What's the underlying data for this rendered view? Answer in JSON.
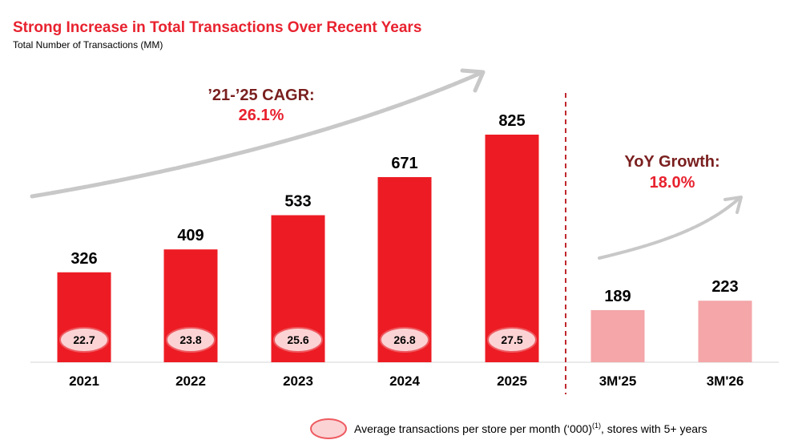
{
  "header": {
    "title": "Strong Increase in Total Transactions Over Recent Years",
    "subtitle": "Total Number of Transactions (MM)"
  },
  "colors": {
    "annual_bar": "#ed1c24",
    "quarter_bar": "#f4a6a9",
    "ellipse_fill": "#fbd3d4",
    "ellipse_stroke": "#ee5a60",
    "divider": "#c0282e",
    "arrow": "#c8c8c8",
    "heading": "#7a1f1f",
    "accent": "#e8222f"
  },
  "chart_data": {
    "type": "bar",
    "categories": [
      "2021",
      "2022",
      "2023",
      "2024",
      "2025",
      "3M'25",
      "3M'26"
    ],
    "series": [
      {
        "name": "",
        "values": [
          326,
          409,
          533,
          671,
          825,
          189,
          223
        ]
      },
      {
        "name": "Average transactions per store per month (‘000)",
        "values": [
          22.7,
          23.8,
          25.6,
          26.8,
          27.5,
          null,
          null
        ]
      }
    ],
    "value_labels": [
      "326",
      "409",
      "533",
      "671",
      "825",
      "189",
      "223"
    ],
    "avg_labels": [
      "22.7",
      "23.8",
      "25.6",
      "26.8",
      "27.5"
    ],
    "ylim": [
      0,
      900
    ],
    "grid": false,
    "annotations": {
      "cagr_heading": "’21-’25 CAGR:",
      "cagr_value": "26.1%",
      "yoy_heading": "YoY Growth:",
      "yoy_value": "18.0%"
    },
    "legend": {
      "position": "bottom-right",
      "text": "Average transactions per store per month (‘000)",
      "superscript": "(1)",
      "suffix": ", stores with 5+ years"
    }
  }
}
